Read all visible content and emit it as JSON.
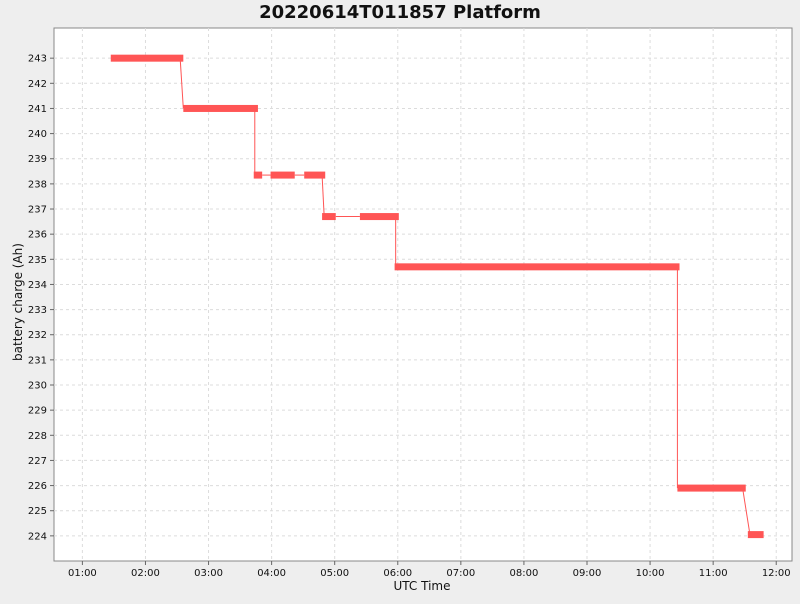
{
  "chart_data": {
    "type": "line",
    "title": "20220614T011857 Platform",
    "xlabel": "UTC Time",
    "ylabel": "battery charge (Ah)",
    "xlim": [
      "00:33",
      "12:15"
    ],
    "ylim": [
      223,
      244.2
    ],
    "grid": true,
    "x_ticks": [
      "01:00",
      "02:00",
      "03:00",
      "04:00",
      "05:00",
      "06:00",
      "07:00",
      "08:00",
      "09:00",
      "10:00",
      "11:00",
      "12:00"
    ],
    "y_ticks": [
      224,
      225,
      226,
      227,
      228,
      229,
      230,
      231,
      232,
      233,
      234,
      235,
      236,
      237,
      238,
      239,
      240,
      241,
      242,
      243
    ],
    "series": [
      {
        "color": "#ff5555",
        "segments": [
          {
            "x_start": "01:27",
            "x_end": "02:36",
            "y": 243.0
          },
          {
            "x_start": "02:36",
            "x_end": "03:47",
            "y": 241.0
          },
          {
            "x_start": "03:43",
            "x_end": "03:51",
            "y": 238.35
          },
          {
            "x_start": "03:59",
            "x_end": "04:22",
            "y": 238.35
          },
          {
            "x_start": "04:31",
            "x_end": "04:51",
            "y": 238.35
          },
          {
            "x_start": "04:48",
            "x_end": "05:01",
            "y": 236.7
          },
          {
            "x_start": "05:24",
            "x_end": "06:01",
            "y": 236.7
          },
          {
            "x_start": "05:57",
            "x_end": "10:28",
            "y": 234.7
          },
          {
            "x_start": "10:26",
            "x_end": "11:31",
            "y": 225.9
          },
          {
            "x_start": "11:33",
            "x_end": "11:48",
            "y": 224.05
          }
        ],
        "connectors": [
          {
            "from": [
              "02:33",
              243.0
            ],
            "to": [
              "02:36",
              241.0
            ]
          },
          {
            "from": [
              "03:44",
              241.0
            ],
            "to": [
              "03:44",
              238.35
            ]
          },
          {
            "from": [
              "03:51",
              238.35
            ],
            "to": [
              "03:59",
              238.35
            ]
          },
          {
            "from": [
              "04:22",
              238.35
            ],
            "to": [
              "04:31",
              238.35
            ]
          },
          {
            "from": [
              "04:48",
              238.35
            ],
            "to": [
              "04:50",
              236.7
            ]
          },
          {
            "from": [
              "05:01",
              236.7
            ],
            "to": [
              "05:24",
              236.7
            ]
          },
          {
            "from": [
              "05:58",
              236.7
            ],
            "to": [
              "05:58",
              234.7
            ]
          },
          {
            "from": [
              "10:26",
              234.7
            ],
            "to": [
              "10:26",
              225.9
            ]
          },
          {
            "from": [
              "11:28",
              225.9
            ],
            "to": [
              "11:35",
              224.05
            ]
          }
        ]
      }
    ]
  }
}
